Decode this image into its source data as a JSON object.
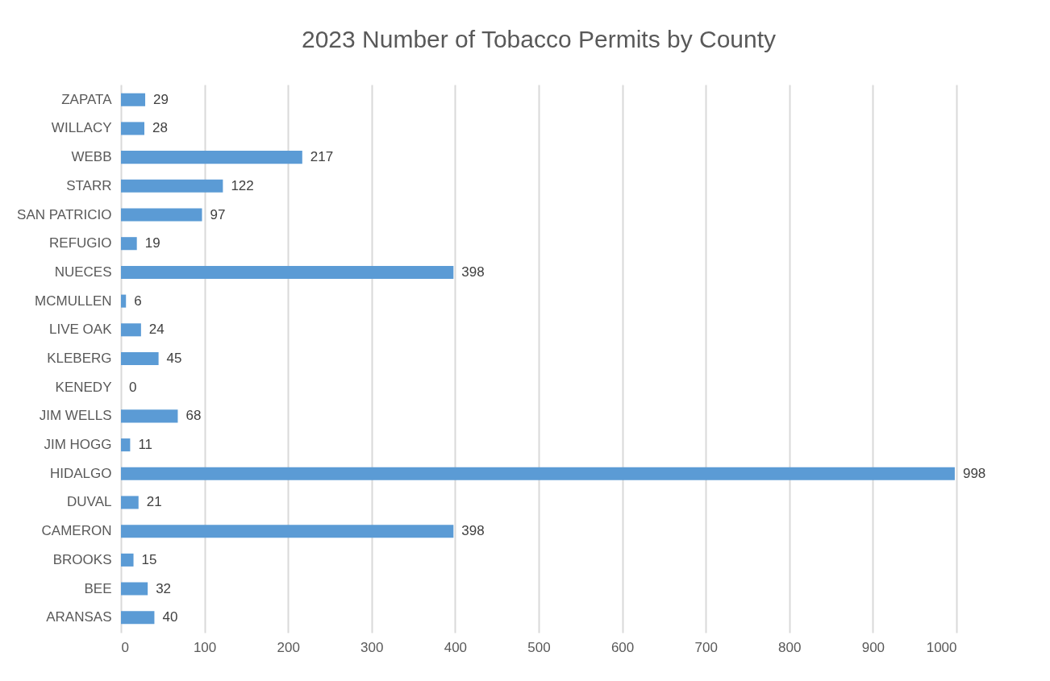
{
  "chart_data": {
    "type": "bar",
    "orientation": "horizontal",
    "title": "2023 Number of Tobacco Permits by County",
    "categories": [
      "ZAPATA",
      "WILLACY",
      "WEBB",
      "STARR",
      "SAN PATRICIO",
      "REFUGIO",
      "NUECES",
      "MCMULLEN",
      "LIVE OAK",
      "KLEBERG",
      "KENEDY",
      "JIM WELLS",
      "JIM HOGG",
      "HIDALGO",
      "DUVAL",
      "CAMERON",
      "BROOKS",
      "BEE",
      "ARANSAS"
    ],
    "values": [
      29,
      28,
      217,
      122,
      97,
      19,
      398,
      6,
      24,
      45,
      0,
      68,
      11,
      998,
      21,
      398,
      15,
      32,
      40
    ],
    "color": "#5b9bd5",
    "xlim": [
      0,
      1000
    ],
    "xticks": [
      0,
      100,
      200,
      300,
      400,
      500,
      600,
      700,
      800,
      900,
      1000
    ],
    "grid": "x",
    "data_labels": true
  }
}
